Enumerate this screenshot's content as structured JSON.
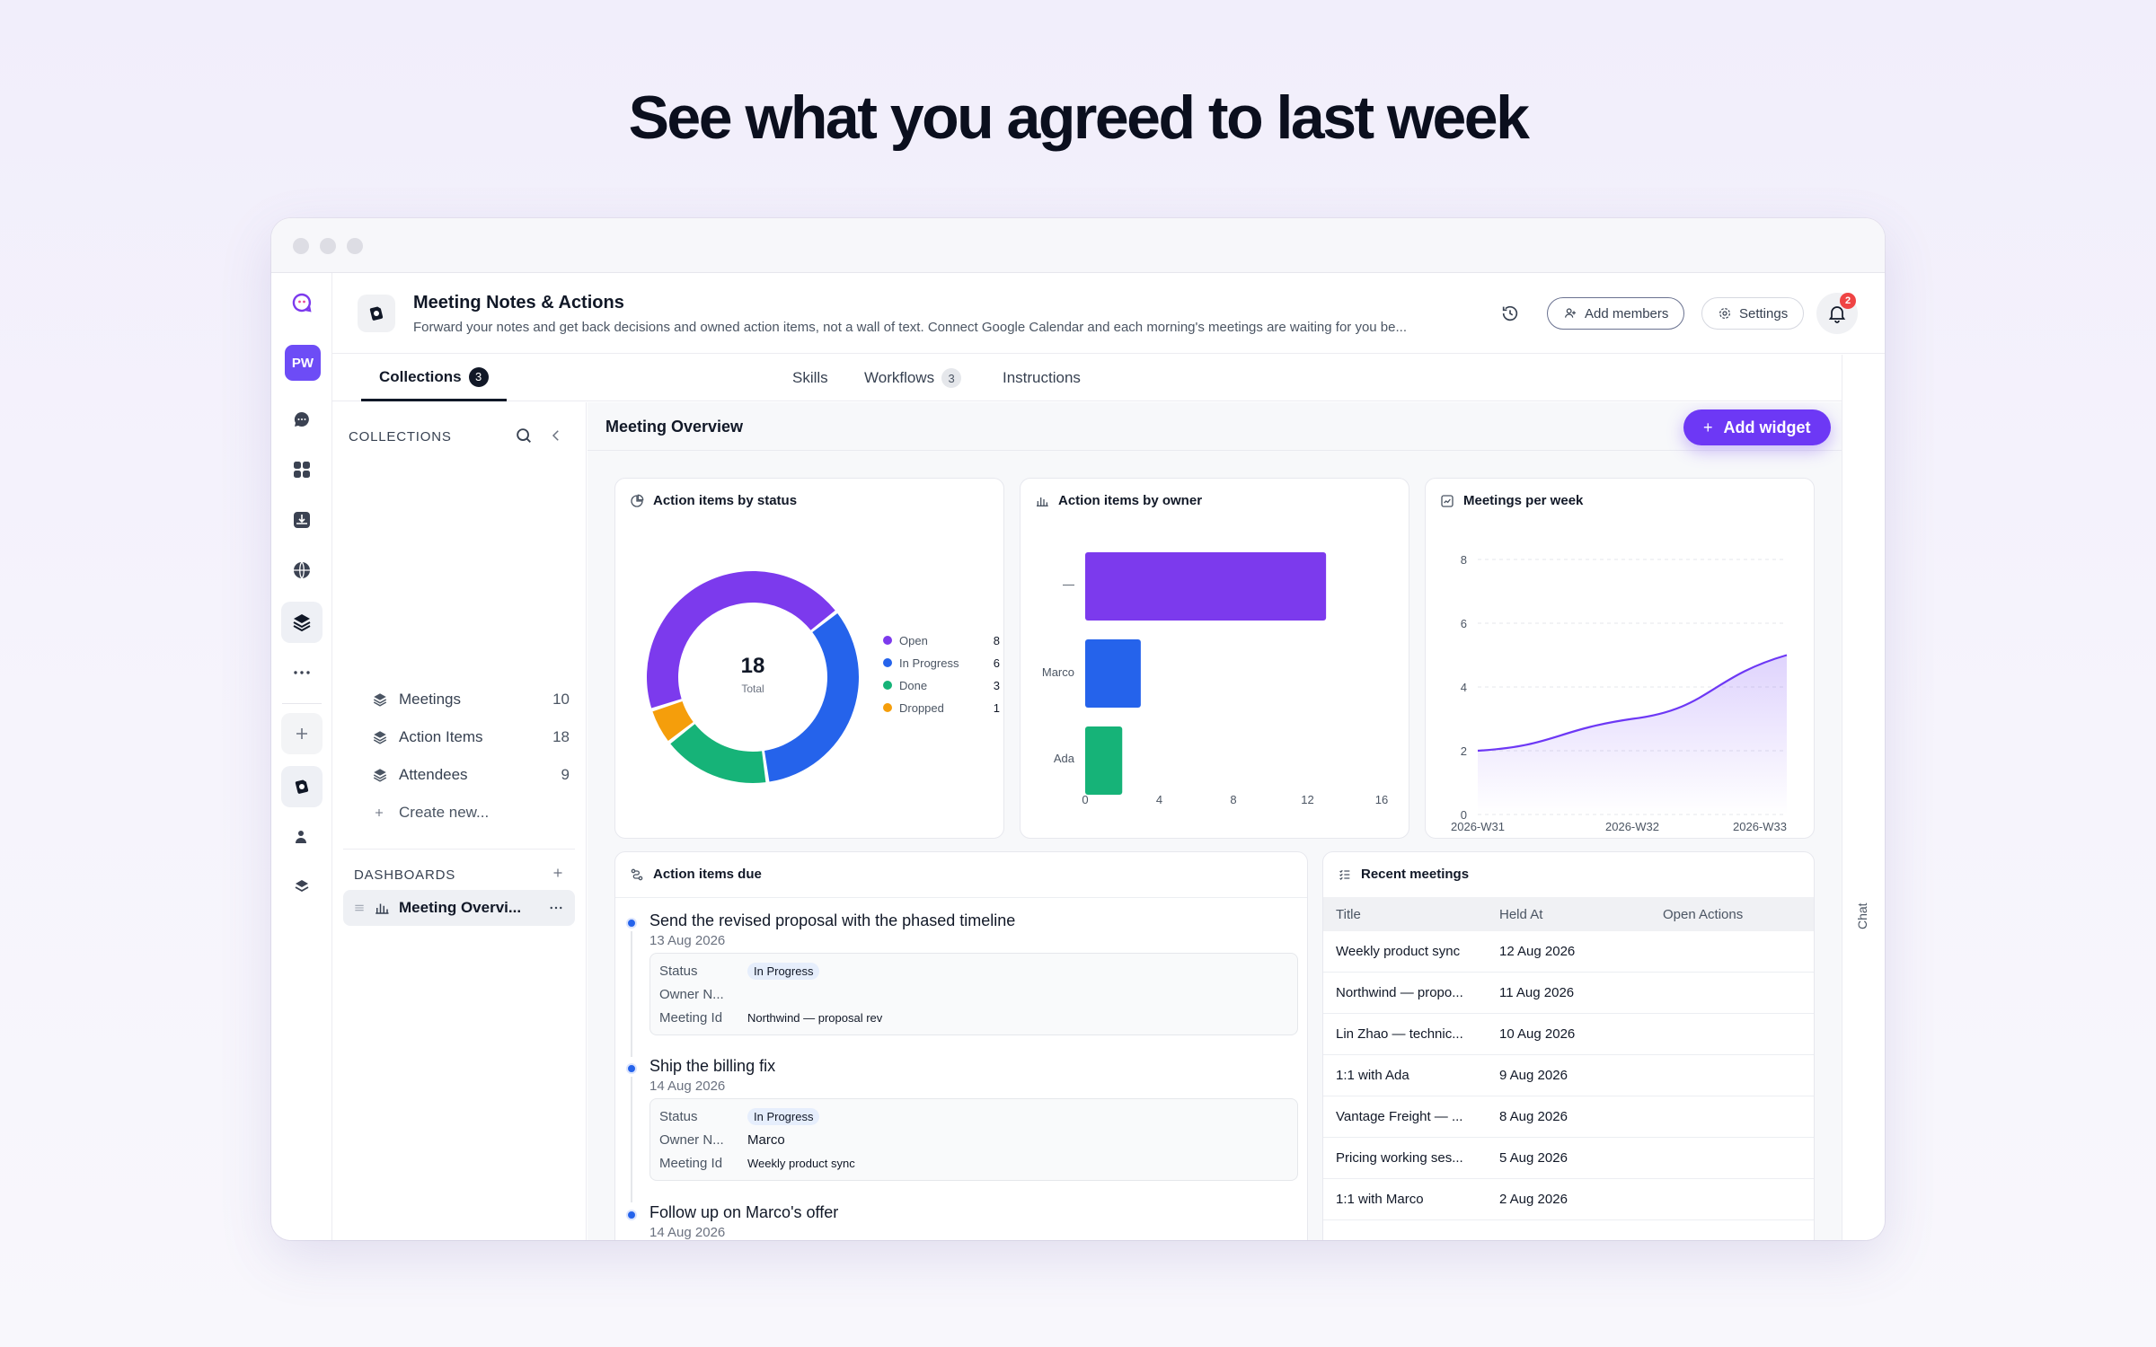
{
  "headline": "See what you agreed to last week",
  "rail": {
    "workspace_initials": "PW"
  },
  "header": {
    "title": "Meeting Notes & Actions",
    "description": "Forward your notes and get back decisions and owned action items, not a wall of text. Connect Google Calendar and each morning's meetings are waiting for you be...",
    "add_members_label": "Add members",
    "settings_label": "Settings",
    "notification_count": "2"
  },
  "tabs": [
    {
      "label": "Collections",
      "count": "3"
    },
    {
      "label": "Skills"
    },
    {
      "label": "Workflows",
      "count": "3"
    },
    {
      "label": "Instructions"
    }
  ],
  "chat_label": "Chat",
  "collections": {
    "heading": "COLLECTIONS",
    "items": [
      {
        "label": "Meetings",
        "count": "10"
      },
      {
        "label": "Action Items",
        "count": "18"
      },
      {
        "label": "Attendees",
        "count": "9"
      }
    ],
    "create_label": "Create new...",
    "dashboards_heading": "DASHBOARDS",
    "dashboard_item": "Meeting Overvi..."
  },
  "main": {
    "title": "Meeting Overview",
    "add_widget_label": "Add widget"
  },
  "widgets": {
    "status": {
      "title": "Action items by status",
      "total": "18",
      "total_label": "Total",
      "legend": [
        {
          "label": "Open",
          "value": "8",
          "color": "#7c3aed"
        },
        {
          "label": "In Progress",
          "value": "6",
          "color": "#2563eb"
        },
        {
          "label": "Done",
          "value": "3",
          "color": "#16b378"
        },
        {
          "label": "Dropped",
          "value": "1",
          "color": "#f59e0b"
        }
      ]
    },
    "owner": {
      "title": "Action items by owner",
      "categories": [
        "—",
        "Marco",
        "Ada"
      ],
      "ticks": [
        "0",
        "4",
        "8",
        "12",
        "16"
      ]
    },
    "weekly": {
      "title": "Meetings per week",
      "y_ticks": [
        "8",
        "6",
        "4",
        "2",
        "0"
      ],
      "x_ticks": [
        "2026-W31",
        "2026-W32",
        "2026-W33"
      ]
    },
    "due": {
      "title": "Action items due",
      "items": [
        {
          "title": "Send the revised proposal with the phased timeline",
          "date": "13 Aug 2026",
          "status_key": "Status",
          "status": "In Progress",
          "owner_key": "Owner N...",
          "owner": "",
          "meeting_key": "Meeting Id",
          "meeting": "Northwind — proposal rev"
        },
        {
          "title": "Ship the billing fix",
          "date": "14 Aug 2026",
          "status_key": "Status",
          "status": "In Progress",
          "owner_key": "Owner N...",
          "owner": "Marco",
          "meeting_key": "Meeting Id",
          "meeting": "Weekly product sync"
        },
        {
          "title": "Follow up on Marco's offer",
          "date": "14 Aug 2026"
        }
      ]
    },
    "recent": {
      "title": "Recent meetings",
      "columns": [
        "Title",
        "Held At",
        "Open Actions"
      ],
      "rows": [
        [
          "Weekly product sync",
          "12 Aug 2026",
          ""
        ],
        [
          "Northwind — propo...",
          "11 Aug 2026",
          ""
        ],
        [
          "Lin Zhao — technic...",
          "10 Aug 2026",
          ""
        ],
        [
          "1:1 with Ada",
          "9 Aug 2026",
          ""
        ],
        [
          "Vantage Freight — ...",
          "8 Aug 2026",
          ""
        ],
        [
          "Pricing working ses...",
          "5 Aug 2026",
          ""
        ],
        [
          "1:1 with Marco",
          "2 Aug 2026",
          ""
        ]
      ]
    }
  },
  "chart_data": [
    {
      "type": "pie",
      "title": "Action items by status",
      "categories": [
        "Open",
        "In Progress",
        "Done",
        "Dropped"
      ],
      "values": [
        8,
        6,
        3,
        1
      ]
    },
    {
      "type": "bar",
      "title": "Action items by owner",
      "orientation": "horizontal",
      "categories": [
        "—",
        "Marco",
        "Ada"
      ],
      "values": [
        13,
        3,
        2
      ],
      "xlim": [
        0,
        16
      ],
      "colors": [
        "#7c3aed",
        "#2563eb",
        "#16b378"
      ]
    },
    {
      "type": "area",
      "title": "Meetings per week",
      "x": [
        "2026-W31",
        "2026-W32",
        "2026-W33"
      ],
      "values": [
        2,
        3,
        5
      ],
      "ylim": [
        0,
        8
      ],
      "grid": true,
      "color": "#6d38f5"
    }
  ]
}
